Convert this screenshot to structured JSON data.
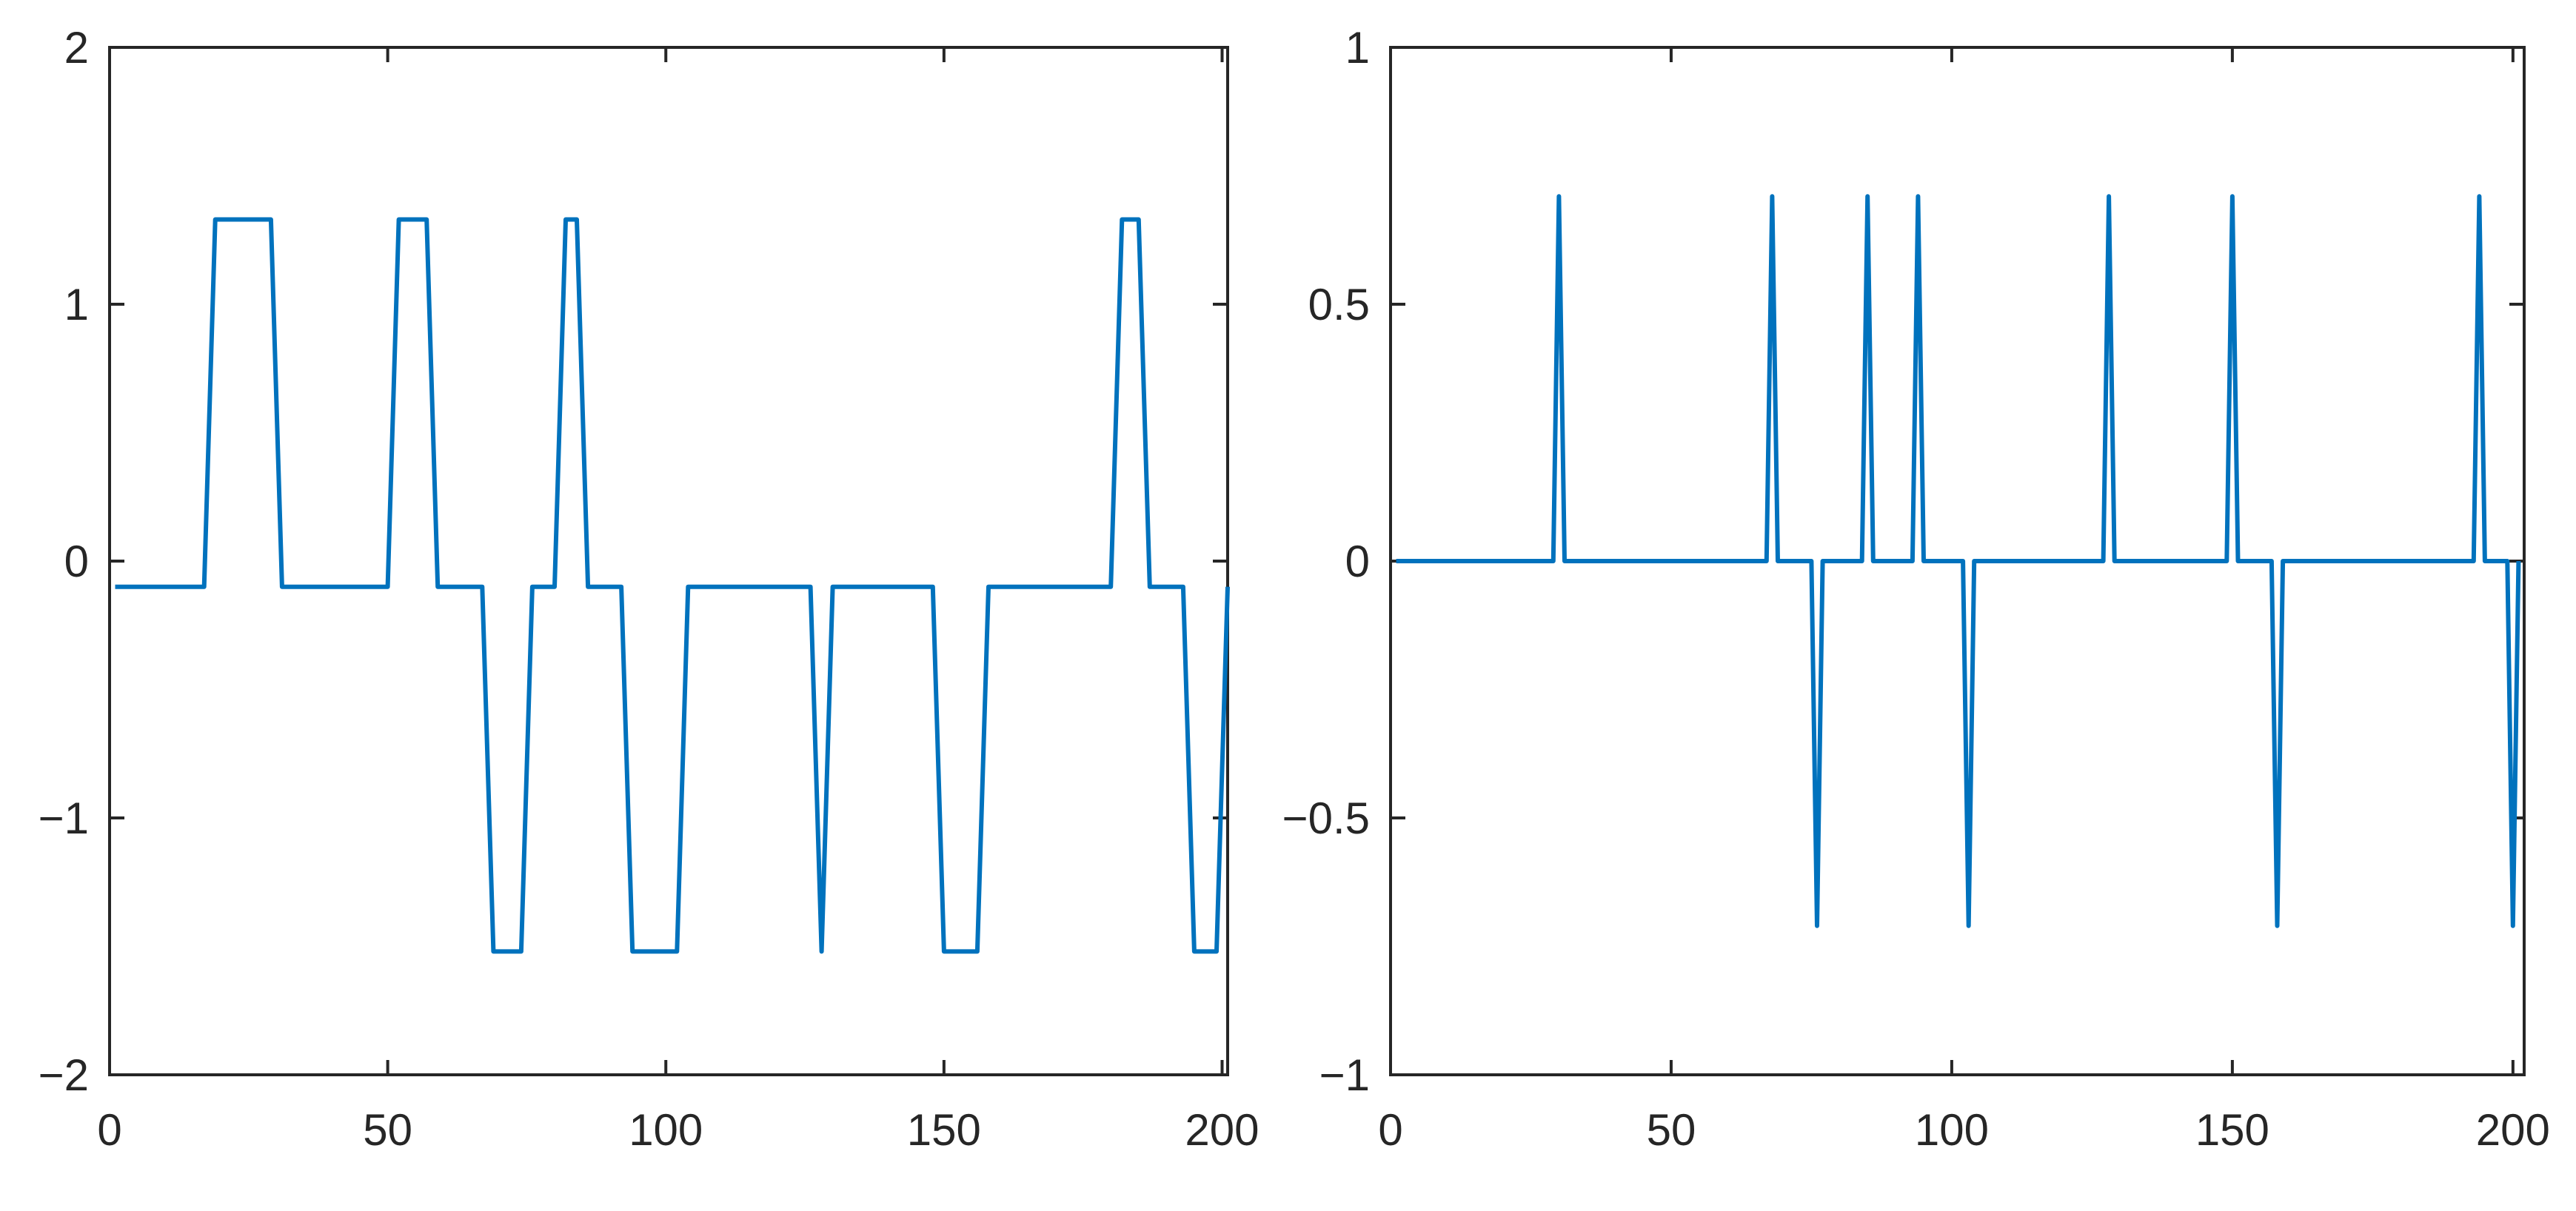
{
  "figure": {
    "background": "#ffffff",
    "axis_color": "#262626",
    "line_color": "#0072BD"
  },
  "chart_data": [
    {
      "type": "line",
      "title": "",
      "xlabel": "",
      "ylabel": "",
      "xlim": [
        0,
        201
      ],
      "ylim": [
        -2,
        2
      ],
      "xticks": [
        0,
        50,
        100,
        150,
        200
      ],
      "yticks": [
        2,
        1,
        0,
        -1,
        -2
      ],
      "xtick_labels": [
        "0",
        "50",
        "100",
        "150",
        "200"
      ],
      "ytick_labels": [
        "2",
        "1",
        "0",
        "−1",
        "−2"
      ],
      "grid": false,
      "series": [
        {
          "color": "#0072BD",
          "x": [
            1,
            17,
            19,
            29,
            31,
            50,
            52,
            57,
            59,
            67,
            69,
            74,
            76,
            80,
            82,
            84,
            86,
            92,
            94,
            102,
            104,
            126,
            128,
            130,
            148,
            150,
            156,
            158,
            180,
            182,
            185,
            187,
            193,
            195,
            199,
            201
          ],
          "y": [
            -0.1,
            -0.1,
            1.33,
            1.33,
            -0.1,
            -0.1,
            1.33,
            1.33,
            -0.1,
            -0.1,
            -1.52,
            -1.52,
            -0.1,
            -0.1,
            1.33,
            1.33,
            -0.1,
            -0.1,
            -1.52,
            -1.52,
            -0.1,
            -0.1,
            -1.52,
            -0.1,
            -0.1,
            -1.52,
            -1.52,
            -0.1,
            -0.1,
            1.33,
            1.33,
            -0.1,
            -0.1,
            -1.52,
            -1.52,
            -0.1
          ]
        }
      ]
    },
    {
      "type": "line",
      "title": "",
      "xlabel": "",
      "ylabel": "",
      "xlim": [
        0,
        202
      ],
      "ylim": [
        -1,
        1
      ],
      "xticks": [
        0,
        50,
        100,
        150,
        200
      ],
      "yticks": [
        1,
        0.5,
        0,
        -0.5,
        -1
      ],
      "xtick_labels": [
        "0",
        "50",
        "100",
        "150",
        "200"
      ],
      "ytick_labels": [
        "1",
        "0.5",
        "0",
        "−0.5",
        "−1"
      ],
      "grid": false,
      "series": [
        {
          "color": "#0072BD",
          "x": [
            1,
            29,
            30,
            31,
            67,
            68,
            69,
            75,
            76,
            77,
            84,
            85,
            86,
            93,
            94,
            95,
            102,
            103,
            104,
            127,
            128,
            129,
            149,
            150,
            151,
            157,
            158,
            159,
            193,
            194,
            195,
            199,
            200,
            201
          ],
          "y": [
            0,
            0,
            0.71,
            0,
            0,
            0.71,
            0,
            0,
            -0.71,
            0,
            0,
            0.71,
            0,
            0,
            0.71,
            0,
            0,
            -0.71,
            0,
            0,
            0.71,
            0,
            0,
            0.71,
            0,
            0,
            -0.71,
            0,
            0,
            0.71,
            0,
            0,
            -0.71,
            0
          ]
        }
      ]
    }
  ]
}
